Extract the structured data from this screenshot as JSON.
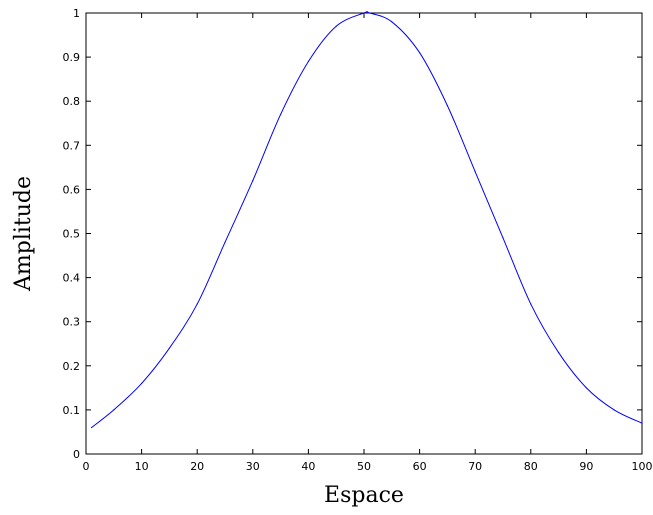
{
  "chart_data": {
    "type": "line",
    "title": "",
    "xlabel": "Espace",
    "ylabel": "Amplitude",
    "xlim": [
      0,
      100
    ],
    "ylim": [
      0,
      1
    ],
    "xticks": [
      0,
      10,
      20,
      30,
      40,
      50,
      60,
      70,
      80,
      90,
      100
    ],
    "yticks": [
      0,
      0.1,
      0.2,
      0.3,
      0.4,
      0.5,
      0.6,
      0.7,
      0.8,
      0.9,
      1
    ],
    "xtick_labels": [
      "0",
      "10",
      "20",
      "30",
      "40",
      "50",
      "60",
      "70",
      "80",
      "90",
      "100"
    ],
    "ytick_labels": [
      "0",
      "0.1",
      "0.2",
      "0.3",
      "0.4",
      "0.5",
      "0.6",
      "0.7",
      "0.8",
      "0.9",
      "1"
    ],
    "grid": false,
    "series": [
      {
        "color": "#0000ff",
        "x": [
          1,
          5,
          10,
          15,
          20,
          25,
          30,
          35,
          40,
          45,
          50,
          51,
          55,
          60,
          65,
          70,
          75,
          80,
          85,
          90,
          95,
          100
        ],
        "y": [
          0.06,
          0.1,
          0.16,
          0.24,
          0.34,
          0.48,
          0.62,
          0.77,
          0.89,
          0.97,
          1.0,
          1.0,
          0.98,
          0.91,
          0.79,
          0.64,
          0.49,
          0.34,
          0.23,
          0.15,
          0.1,
          0.07
        ]
      }
    ]
  }
}
